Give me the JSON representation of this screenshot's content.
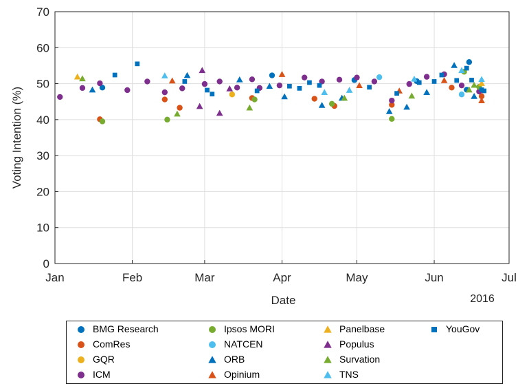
{
  "chart_data": {
    "type": "scatter",
    "ylabel": "Voting Intention (%)",
    "xlabel": "Date",
    "year_label": "2016",
    "ylim": [
      0,
      70
    ],
    "yticks": [
      0,
      10,
      20,
      30,
      40,
      50,
      60,
      70
    ],
    "xlim": [
      "2016-01-01",
      "2016-07-01"
    ],
    "xticks": [
      {
        "date": "2016-01-01",
        "label": "Jan"
      },
      {
        "date": "2016-02-01",
        "label": "Feb"
      },
      {
        "date": "2016-03-01",
        "label": "Mar"
      },
      {
        "date": "2016-04-01",
        "label": "Apr"
      },
      {
        "date": "2016-05-01",
        "label": "May"
      },
      {
        "date": "2016-06-01",
        "label": "Jun"
      },
      {
        "date": "2016-07-01",
        "label": "Jul"
      }
    ],
    "grid": true,
    "legend_position": "bottom",
    "series": [
      {
        "name": "BMG Research",
        "marker": "circle",
        "color": "#0072BD",
        "points": [
          [
            "2016-01-20",
            48.9
          ],
          [
            "2016-03-28",
            52.3
          ],
          [
            "2016-04-30",
            51.0
          ],
          [
            "2016-05-25",
            50.7
          ],
          [
            "2016-06-15",
            56.0
          ],
          [
            "2016-06-14",
            48.3
          ]
        ]
      },
      {
        "name": "ComRes",
        "marker": "circle",
        "color": "#D95319",
        "points": [
          [
            "2016-01-19",
            40.1
          ],
          [
            "2016-02-14",
            45.6
          ],
          [
            "2016-02-20",
            43.3
          ],
          [
            "2016-03-20",
            46.0
          ],
          [
            "2016-04-14",
            45.8
          ],
          [
            "2016-04-22",
            43.8
          ],
          [
            "2016-05-15",
            44.1
          ],
          [
            "2016-06-08",
            48.9
          ],
          [
            "2016-06-20",
            46.5
          ]
        ]
      },
      {
        "name": "GQR",
        "marker": "circle",
        "color": "#EDB120",
        "points": [
          [
            "2016-03-12",
            47.0
          ]
        ]
      },
      {
        "name": "ICM",
        "marker": "circle",
        "color": "#7E2F8E",
        "points": [
          [
            "2016-01-03",
            46.3
          ],
          [
            "2016-01-12",
            48.8
          ],
          [
            "2016-01-19",
            50.1
          ],
          [
            "2016-01-30",
            48.2
          ],
          [
            "2016-02-07",
            50.6
          ],
          [
            "2016-02-14",
            47.6
          ],
          [
            "2016-02-21",
            48.7
          ],
          [
            "2016-03-01",
            49.9
          ],
          [
            "2016-03-07",
            50.6
          ],
          [
            "2016-03-14",
            48.9
          ],
          [
            "2016-03-20",
            51.2
          ],
          [
            "2016-03-23",
            48.8
          ],
          [
            "2016-03-31",
            49.5
          ],
          [
            "2016-04-10",
            51.7
          ],
          [
            "2016-04-17",
            50.6
          ],
          [
            "2016-04-24",
            51.1
          ],
          [
            "2016-05-01",
            51.7
          ],
          [
            "2016-05-08",
            50.6
          ],
          [
            "2016-05-15",
            45.3
          ],
          [
            "2016-05-22",
            49.9
          ],
          [
            "2016-05-29",
            51.9
          ],
          [
            "2016-06-05",
            52.6
          ],
          [
            "2016-06-12",
            49.5
          ],
          [
            "2016-06-19",
            47.8
          ]
        ]
      },
      {
        "name": "Ipsos MORI",
        "marker": "circle",
        "color": "#77AC30",
        "points": [
          [
            "2016-01-20",
            39.5
          ],
          [
            "2016-02-15",
            40.0
          ],
          [
            "2016-03-21",
            45.6
          ],
          [
            "2016-04-21",
            44.4
          ],
          [
            "2016-05-15",
            40.2
          ],
          [
            "2016-06-13",
            53.3
          ],
          [
            "2016-06-19",
            49.1
          ]
        ]
      },
      {
        "name": "NATCEN",
        "marker": "circle",
        "color": "#4DBEEE",
        "points": [
          [
            "2016-05-10",
            51.8
          ],
          [
            "2016-06-12",
            47.0
          ]
        ]
      },
      {
        "name": "ORB",
        "marker": "triangle",
        "color": "#0072BD",
        "points": [
          [
            "2016-01-16",
            48.3
          ],
          [
            "2016-02-23",
            52.3
          ],
          [
            "2016-03-15",
            51.1
          ],
          [
            "2016-03-27",
            49.3
          ],
          [
            "2016-04-02",
            46.4
          ],
          [
            "2016-04-17",
            44.0
          ],
          [
            "2016-04-25",
            46.0
          ],
          [
            "2016-05-14",
            42.3
          ],
          [
            "2016-05-21",
            43.5
          ],
          [
            "2016-05-29",
            47.6
          ],
          [
            "2016-06-09",
            55.1
          ],
          [
            "2016-06-17",
            46.5
          ]
        ]
      },
      {
        "name": "Opinium",
        "marker": "triangle",
        "color": "#D95319",
        "points": [
          [
            "2016-02-17",
            50.8
          ],
          [
            "2016-04-01",
            52.6
          ],
          [
            "2016-05-02",
            49.5
          ],
          [
            "2016-05-18",
            48.0
          ],
          [
            "2016-06-05",
            50.9
          ],
          [
            "2016-06-20",
            45.3
          ]
        ]
      },
      {
        "name": "Panelbase",
        "marker": "triangle",
        "color": "#EDB120",
        "points": [
          [
            "2016-01-10",
            51.9
          ],
          [
            "2016-06-20",
            50.1
          ]
        ]
      },
      {
        "name": "Populus",
        "marker": "triangle",
        "color": "#7E2F8E",
        "points": [
          [
            "2016-02-29",
            53.7
          ],
          [
            "2016-02-28",
            43.7
          ],
          [
            "2016-03-07",
            41.8
          ],
          [
            "2016-03-11",
            48.6
          ]
        ]
      },
      {
        "name": "Survation",
        "marker": "triangle",
        "color": "#77AC30",
        "points": [
          [
            "2016-01-12",
            51.4
          ],
          [
            "2016-02-19",
            41.6
          ],
          [
            "2016-03-19",
            43.3
          ],
          [
            "2016-04-26",
            46.0
          ],
          [
            "2016-05-23",
            46.6
          ],
          [
            "2016-06-15",
            48.3
          ],
          [
            "2016-06-17",
            49.6
          ]
        ]
      },
      {
        "name": "TNS",
        "marker": "triangle",
        "color": "#4DBEEE",
        "points": [
          [
            "2016-02-14",
            52.2
          ],
          [
            "2016-04-18",
            47.6
          ],
          [
            "2016-04-28",
            48.2
          ],
          [
            "2016-05-24",
            51.3
          ],
          [
            "2016-06-12",
            53.7
          ],
          [
            "2016-06-20",
            51.2
          ]
        ]
      },
      {
        "name": "YouGov",
        "marker": "square",
        "color": "#0072BD",
        "points": [
          [
            "2016-01-25",
            52.4
          ],
          [
            "2016-02-03",
            55.5
          ],
          [
            "2016-02-22",
            50.6
          ],
          [
            "2016-03-02",
            48.2
          ],
          [
            "2016-03-04",
            47.1
          ],
          [
            "2016-03-22",
            48.0
          ],
          [
            "2016-04-04",
            49.3
          ],
          [
            "2016-04-08",
            48.7
          ],
          [
            "2016-04-12",
            50.3
          ],
          [
            "2016-04-16",
            49.5
          ],
          [
            "2016-05-06",
            49.0
          ],
          [
            "2016-05-17",
            47.3
          ],
          [
            "2016-05-26",
            50.3
          ],
          [
            "2016-06-01",
            50.6
          ],
          [
            "2016-06-04",
            52.4
          ],
          [
            "2016-06-10",
            50.9
          ],
          [
            "2016-06-14",
            54.3
          ],
          [
            "2016-06-16",
            51.0
          ],
          [
            "2016-06-20",
            48.3
          ],
          [
            "2016-06-21",
            48.0
          ]
        ]
      }
    ]
  }
}
